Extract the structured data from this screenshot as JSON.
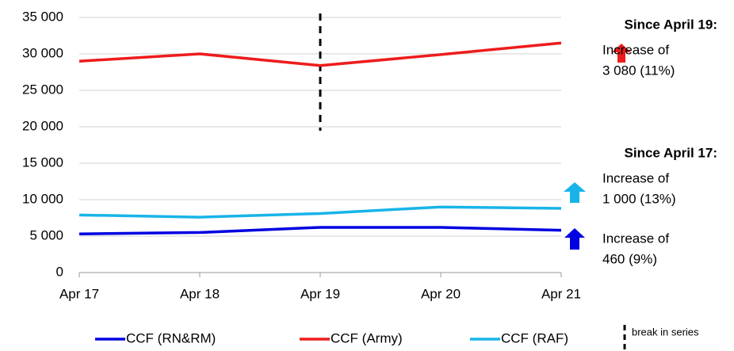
{
  "chart_data": {
    "type": "line",
    "categories": [
      "Apr 17",
      "Apr 18",
      "Apr 19",
      "Apr 20",
      "Apr 21"
    ],
    "series": [
      {
        "name": "CCF (RN&RM)",
        "color": "#0000e0",
        "values": [
          5300,
          5500,
          6200,
          6200,
          5800
        ]
      },
      {
        "name": "CCF (Army)",
        "color": "#ee1c1c",
        "values": [
          29000,
          30000,
          28400,
          29900,
          31500
        ]
      },
      {
        "name": "CCF (RAF)",
        "color": "#18b4e8",
        "values": [
          7900,
          7600,
          8100,
          9000,
          8800
        ]
      }
    ],
    "ylim": [
      0,
      35000
    ],
    "yticks": [
      0,
      {
        "value": 5000,
        "label": "5 000"
      },
      {
        "value": 10000,
        "label": "10 000"
      },
      {
        "value": 15000,
        "label": "15 000"
      },
      {
        "value": 20000,
        "label": "20 000"
      },
      {
        "value": 25000,
        "label": "25 000"
      },
      {
        "value": 30000,
        "label": "30 000"
      },
      {
        "value": 35000,
        "label": "35 000"
      }
    ],
    "grid": true,
    "annotations": [
      "Since April 19:",
      "Increase of",
      "3 080 (11%)",
      "Since April 17:",
      "Increase of",
      "1 000 (13%)",
      "Increase of",
      "460 (9%)",
      "break in series"
    ]
  }
}
